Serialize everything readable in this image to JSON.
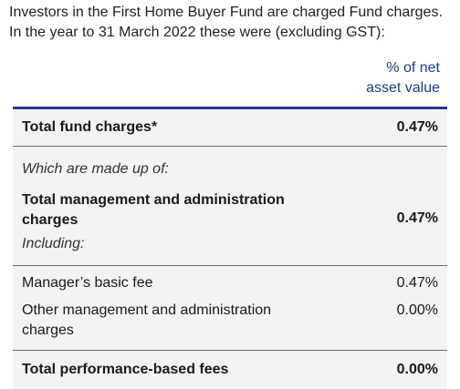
{
  "intro": "Investors in the First Home Buyer Fund are charged Fund charges. In the year to 31 March 2022 these were (excluding GST):",
  "column_header": {
    "line1": "% of net",
    "line2": "asset value"
  },
  "rows": {
    "total_fund_charges": {
      "label": "Total fund charges*",
      "value": "0.47%"
    },
    "made_up_of": {
      "label": "Which are made up of:"
    },
    "total_management": {
      "label": "Total management and administration charges",
      "value": "0.47%"
    },
    "including": {
      "label": "Including:"
    },
    "managers_basic_fee": {
      "label": "Manager’s basic fee",
      "value": "0.47%"
    },
    "other_management": {
      "label": "Other management and administration charges",
      "value": "0.00%"
    },
    "total_performance": {
      "label": "Total performance-based fees",
      "value": "0.00%"
    }
  },
  "colors": {
    "accent": "#1f3a93",
    "row_background": "#f3f3f3"
  }
}
